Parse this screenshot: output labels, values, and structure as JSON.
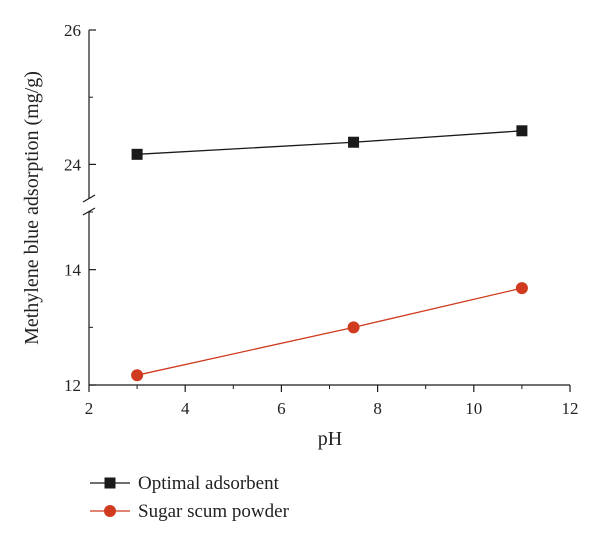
{
  "chart_data": {
    "type": "line",
    "title": "",
    "xlabel": "pH",
    "ylabel": "Methylene blue adsorption (mg/g)",
    "xlim": [
      2,
      12
    ],
    "x_ticks": [
      "2",
      "4",
      "6",
      "8",
      "10",
      "12"
    ],
    "y_axis_break": true,
    "y_segments": [
      {
        "ylim": [
          23.5,
          26
        ],
        "ticks": [
          "24",
          "26"
        ]
      },
      {
        "ylim": [
          12,
          15
        ],
        "ticks": [
          "12",
          "14"
        ]
      }
    ],
    "grid": false,
    "legend_position": "bottom-left",
    "series": [
      {
        "name": "Optimal adsorbent",
        "marker": "square",
        "color": "#1a1a1a",
        "points": [
          {
            "x": 3,
            "y": 24.15
          },
          {
            "x": 7.5,
            "y": 24.33
          },
          {
            "x": 11,
            "y": 24.5
          }
        ]
      },
      {
        "name": "Sugar scum powder",
        "marker": "circle",
        "color": "#d03a1e",
        "points": [
          {
            "x": 3,
            "y": 12.17
          },
          {
            "x": 7.5,
            "y": 13.0
          },
          {
            "x": 11,
            "y": 13.68
          }
        ]
      }
    ]
  }
}
